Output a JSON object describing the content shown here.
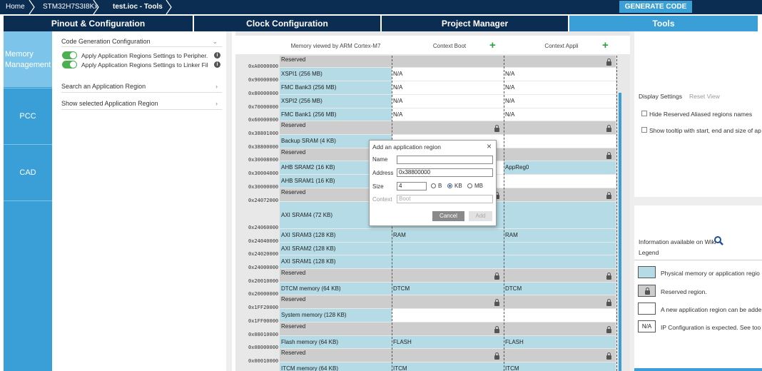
{
  "breadcrumb": {
    "home": "Home",
    "mcu": "STM32H7S3I8Kx",
    "file": "test.ioc - Tools"
  },
  "generate_label": "GENERATE CODE",
  "tabs": [
    "Pinout & Configuration",
    "Clock Configuration",
    "Project Manager",
    "Tools"
  ],
  "sidebar": {
    "memory_line1": "Memory",
    "memory_line2": "Management",
    "pcc": "PCC",
    "cad": "CAD"
  },
  "config": {
    "code_gen": "Code Generation Configuration",
    "toggle1": "Apply Application Regions Settings to Peripher...",
    "toggle2": "Apply Application Regions Settings to Linker Fil...",
    "search": "Search an Application Region",
    "show_selected": "Show selected Application Region"
  },
  "map_header": {
    "memory_viewed": "Memory viewed by ARM Cortex-M7",
    "ctx_boot": "Context Boot",
    "ctx_appli": "Context Appli"
  },
  "memory_rows": [
    {
      "addr": "0xA0000000",
      "region": "Reserved",
      "kind": "res",
      "boot": "",
      "boot_kind": "res",
      "appli": "",
      "appli_kind": "res",
      "boot_lock": false,
      "appli_lock": true
    },
    {
      "addr": "0x90000000",
      "region": "XSPI1 (256 MB)",
      "kind": "phys",
      "boot": "N/A",
      "boot_kind": "empty",
      "appli": "N/A",
      "appli_kind": "empty",
      "boot_lock": false,
      "appli_lock": false
    },
    {
      "addr": "0x80000000",
      "region": "FMC Bank3 (256 MB)",
      "kind": "phys",
      "boot": "N/A",
      "boot_kind": "empty",
      "appli": "N/A",
      "appli_kind": "empty",
      "boot_lock": false,
      "appli_lock": false
    },
    {
      "addr": "0x70000000",
      "region": "XSPI2 (256 MB)",
      "kind": "phys",
      "boot": "N/A",
      "boot_kind": "empty",
      "appli": "N/A",
      "appli_kind": "empty",
      "boot_lock": false,
      "appli_lock": false
    },
    {
      "addr": "0x60000000",
      "region": "FMC Bank1 (256 MB)",
      "kind": "phys",
      "boot": "N/A",
      "boot_kind": "empty",
      "appli": "N/A",
      "appli_kind": "empty",
      "boot_lock": false,
      "appli_lock": false
    },
    {
      "addr": "0x38801000",
      "region": "Reserved",
      "kind": "res",
      "boot": "",
      "boot_kind": "res",
      "appli": "",
      "appli_kind": "res",
      "boot_lock": true,
      "appli_lock": true
    },
    {
      "addr": "0x38800000",
      "region": "Backup SRAM (4 KB)",
      "kind": "phys",
      "boot": "",
      "boot_kind": "empty",
      "appli": "",
      "appli_kind": "empty",
      "boot_lock": false,
      "appli_lock": false
    },
    {
      "addr": "0x30008000",
      "region": "Reserved",
      "kind": "res",
      "boot": "",
      "boot_kind": "res",
      "appli": "",
      "appli_kind": "res",
      "boot_lock": false,
      "appli_lock": true
    },
    {
      "addr": "0x30004000",
      "region": "AHB SRAM2 (16 KB)",
      "kind": "phys",
      "boot": "",
      "boot_kind": "empty",
      "appli": "AppReg0",
      "appli_kind": "phys",
      "boot_lock": false,
      "appli_lock": false
    },
    {
      "addr": "0x30000000",
      "region": "AHB SRAM1 (16 KB)",
      "kind": "phys",
      "boot": "",
      "boot_kind": "empty",
      "appli": "",
      "appli_kind": "empty",
      "boot_lock": false,
      "appli_lock": false
    },
    {
      "addr": "0x24072000",
      "region": "Reserved",
      "kind": "res",
      "boot": "",
      "boot_kind": "res",
      "appli": "",
      "appli_kind": "res",
      "boot_lock": true,
      "appli_lock": true
    },
    {
      "addr": "0x24060000",
      "region": "AXI SRAM4 (72 KB)",
      "kind": "phys",
      "boot": "",
      "boot_kind": "phys",
      "appli": "",
      "appli_kind": "phys",
      "boot_lock": false,
      "appli_lock": false
    },
    {
      "addr": "0x24040000",
      "region": "AXI SRAM3 (128 KB)",
      "kind": "phys",
      "boot": "RAM",
      "boot_kind": "phys",
      "appli": "RAM",
      "appli_kind": "phys",
      "boot_lock": false,
      "appli_lock": false
    },
    {
      "addr": "0x24020000",
      "region": "AXI SRAM2 (128 KB)",
      "kind": "phys",
      "boot": "",
      "boot_kind": "phys",
      "appli": "",
      "appli_kind": "phys",
      "boot_lock": false,
      "appli_lock": false
    },
    {
      "addr": "0x24000000",
      "region": "AXI SRAM1 (128 KB)",
      "kind": "phys",
      "boot": "",
      "boot_kind": "phys",
      "appli": "",
      "appli_kind": "phys",
      "boot_lock": false,
      "appli_lock": false
    },
    {
      "addr": "0x20010000",
      "region": "Reserved",
      "kind": "res",
      "boot": "",
      "boot_kind": "res",
      "appli": "",
      "appli_kind": "res",
      "boot_lock": true,
      "appli_lock": true
    },
    {
      "addr": "0x20000000",
      "region": "DTCM memory (64 KB)",
      "kind": "phys",
      "boot": "DTCM",
      "boot_kind": "phys",
      "appli": "DTCM",
      "appli_kind": "phys",
      "boot_lock": false,
      "appli_lock": false
    },
    {
      "addr": "0x1FF20000",
      "region": "Reserved",
      "kind": "res",
      "boot": "",
      "boot_kind": "res",
      "appli": "",
      "appli_kind": "res",
      "boot_lock": true,
      "appli_lock": true
    },
    {
      "addr": "0x1FF00000",
      "region": "System memory (128 KB)",
      "kind": "phys",
      "boot": "",
      "boot_kind": "empty",
      "appli": "",
      "appli_kind": "empty",
      "boot_lock": false,
      "appli_lock": false
    },
    {
      "addr": "0x08010000",
      "region": "Reserved",
      "kind": "res",
      "boot": "",
      "boot_kind": "res",
      "appli": "",
      "appli_kind": "res",
      "boot_lock": true,
      "appli_lock": true
    },
    {
      "addr": "0x08000000",
      "region": "Flash memory (64 KB)",
      "kind": "phys",
      "boot": "FLASH",
      "boot_kind": "phys",
      "appli": "FLASH",
      "appli_kind": "phys",
      "boot_lock": false,
      "appli_lock": false
    },
    {
      "addr": "0x00010000",
      "region": "Reserved",
      "kind": "res",
      "boot": "",
      "boot_kind": "res",
      "appli": "",
      "appli_kind": "res",
      "boot_lock": true,
      "appli_lock": true
    },
    {
      "addr": "0x00000000",
      "region": "ITCM memory (64 KB)",
      "kind": "phys",
      "boot": "ITCM",
      "boot_kind": "phys",
      "appli": "ITCM",
      "appli_kind": "phys",
      "boot_lock": false,
      "appli_lock": false
    }
  ],
  "dialog": {
    "title": "Add an application region",
    "name_label": "Name",
    "name_value": "",
    "address_label": "Address",
    "address_value": "0x38800000",
    "size_label": "Size",
    "size_value": "4",
    "units": [
      "B",
      "KB",
      "MB"
    ],
    "selected_unit": "KB",
    "context_label": "Context",
    "context_value": "Boot",
    "cancel": "Cancel",
    "add": "Add"
  },
  "right": {
    "display_settings": "Display Settings",
    "reset_view": "Reset View",
    "hide_reserved": "Hide Reserved Aliased regions names",
    "show_tooltip": "Show tooltip with start, end and size of ap",
    "info_wiki": "Information available on Wiki",
    "legend": "Legend",
    "legend_phys": "Physical memory or application regio",
    "legend_reserved": "Reserved region.",
    "legend_new": "A new application region can be adde",
    "legend_na_box": "N/A",
    "legend_na": "IP Configuration is expected. See too"
  },
  "colors": {
    "dark_navy": "#0b2d52",
    "accent_blue": "#3a9fd6",
    "phys_fill": "#b4dbe6",
    "reserved_fill": "#cdcdcd",
    "toggle_green": "#4caf50"
  }
}
